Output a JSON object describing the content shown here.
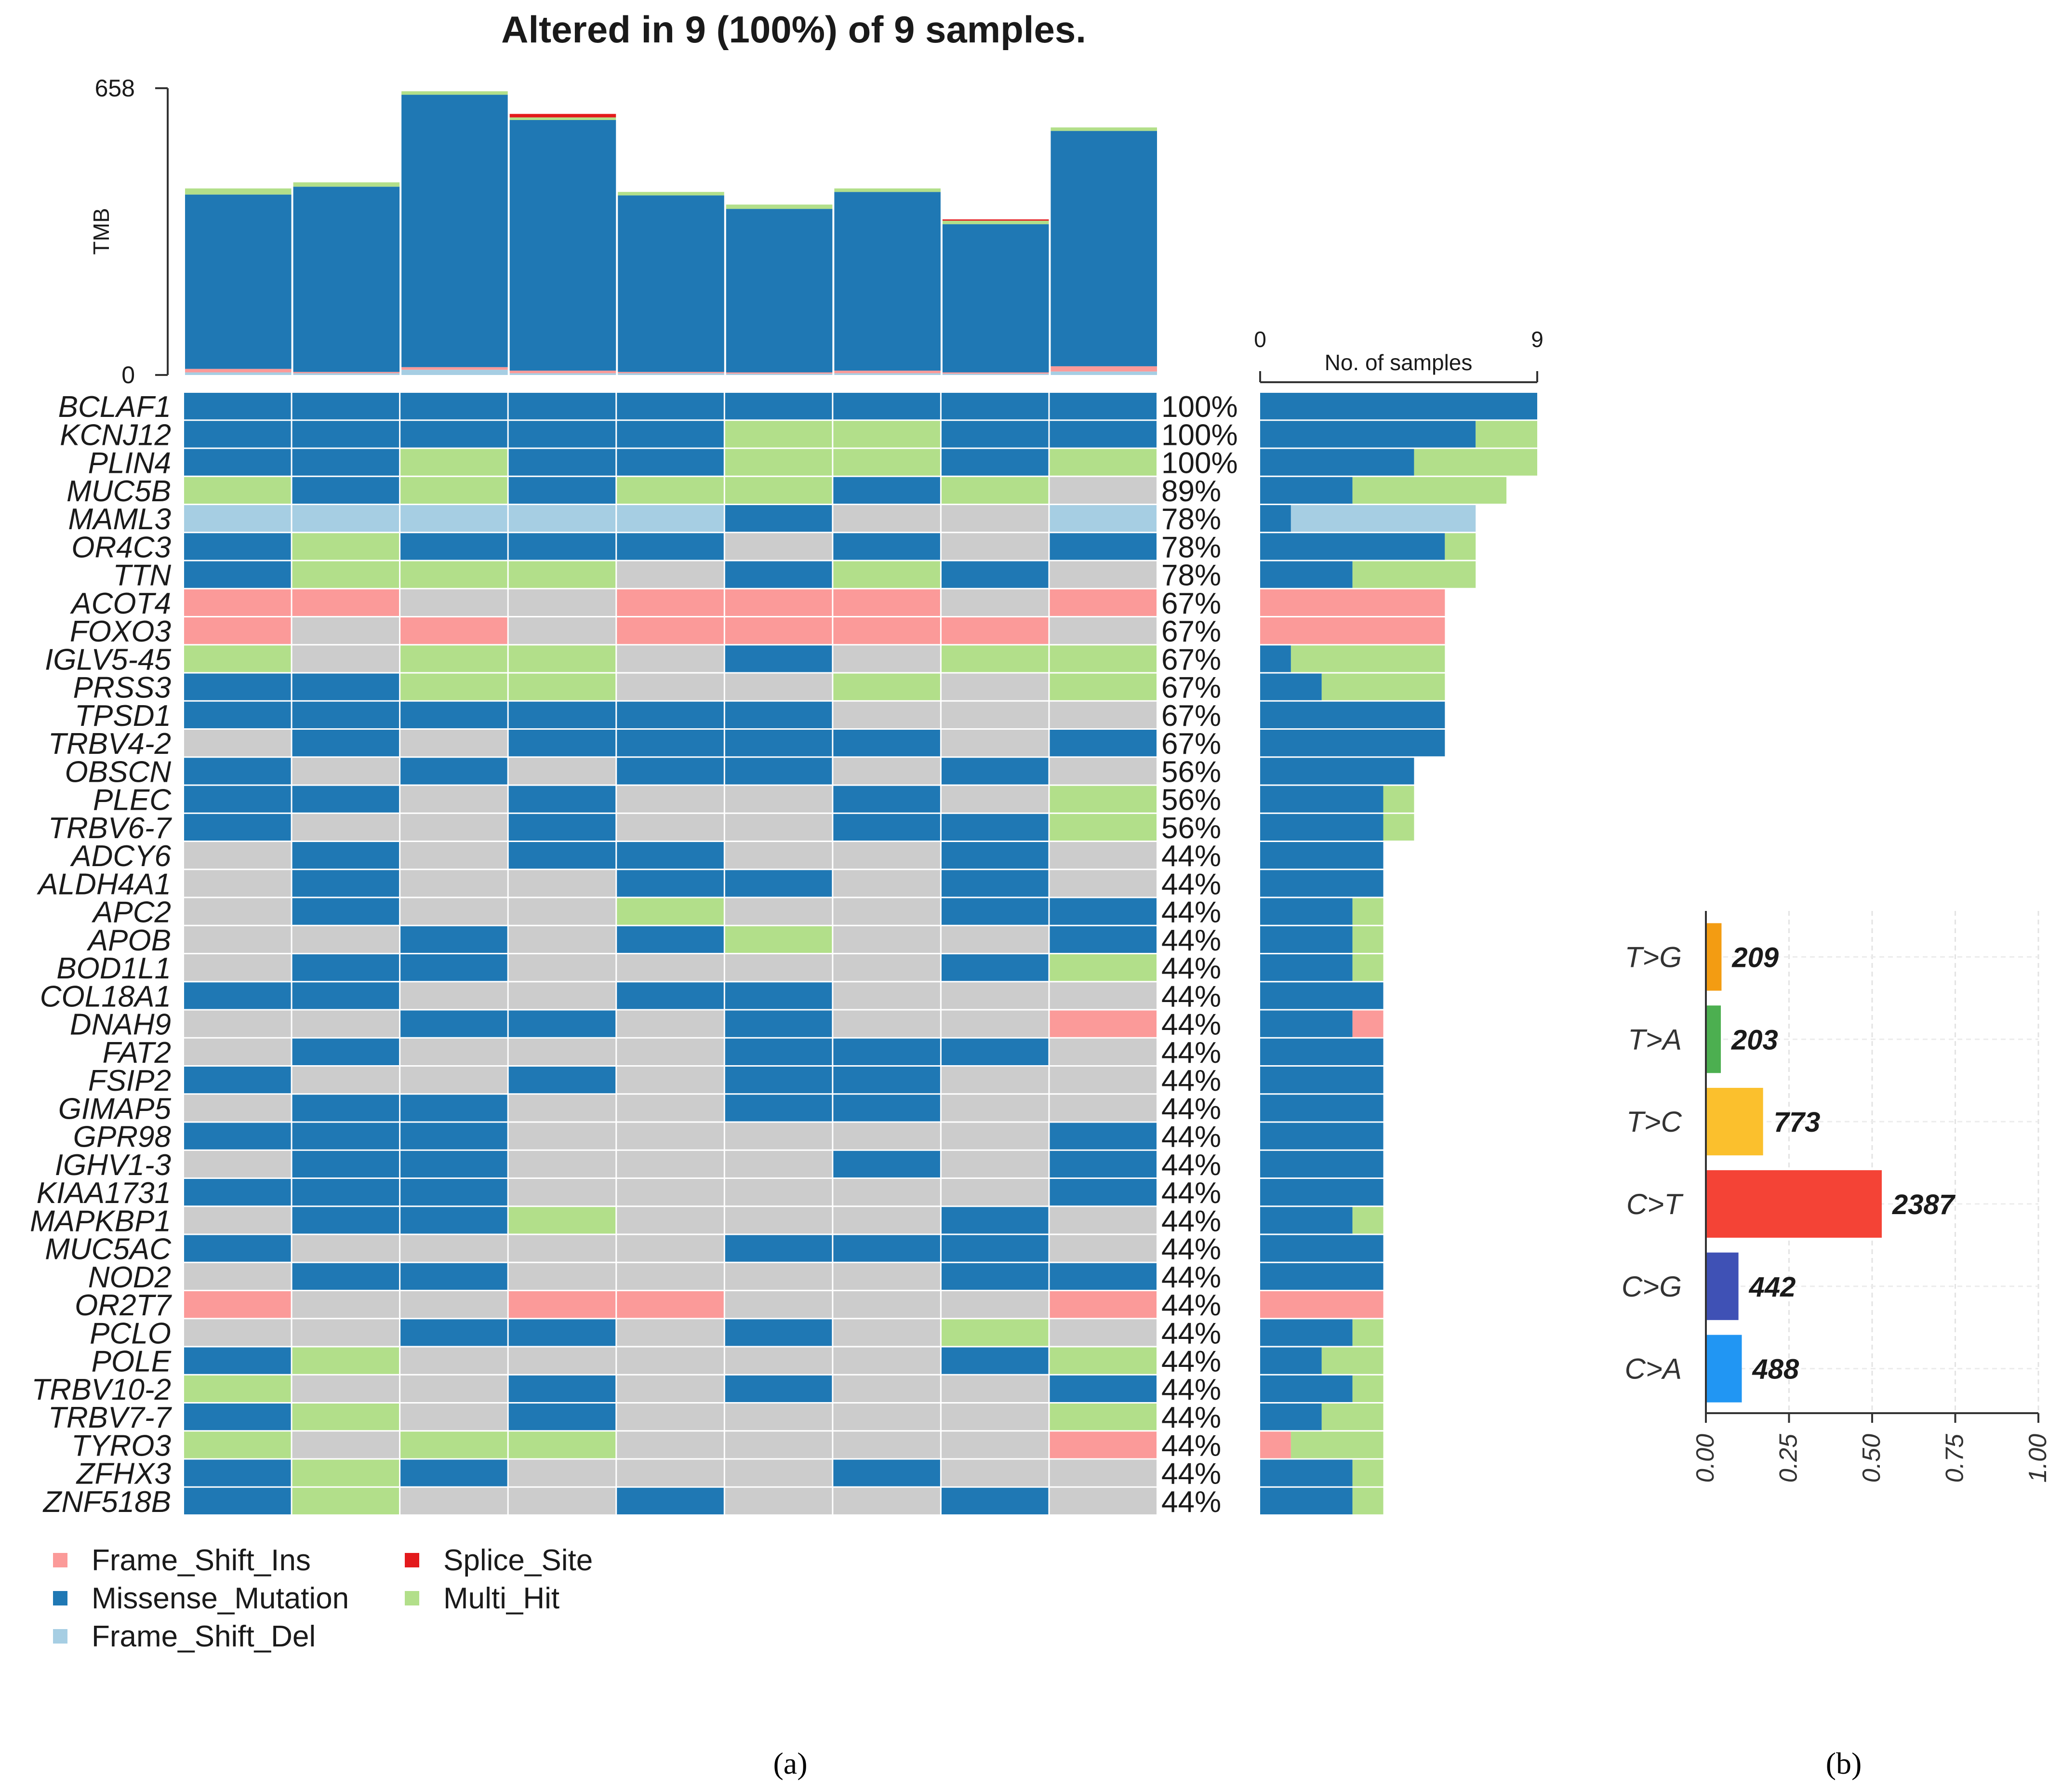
{
  "chart_data": [
    {
      "type": "oncoplot",
      "title": "Altered in 9 (100%) of 9 samples.",
      "tmb": {
        "ylabel": "TMB",
        "ylim": [
          0,
          658
        ],
        "tick_labels": [
          "658",
          "0"
        ],
        "samples": [
          {
            "missense": 400,
            "multi": 14,
            "fs_ins": 8,
            "fs_del": 6,
            "splice": 0
          },
          {
            "missense": 425,
            "multi": 10,
            "fs_ins": 3,
            "fs_del": 4,
            "splice": 0
          },
          {
            "missense": 625,
            "multi": 8,
            "fs_ins": 6,
            "fs_del": 12,
            "splice": 0
          },
          {
            "missense": 575,
            "multi": 6,
            "fs_ins": 6,
            "fs_del": 4,
            "splice": 8
          },
          {
            "missense": 405,
            "multi": 8,
            "fs_ins": 3,
            "fs_del": 4,
            "splice": 0
          },
          {
            "missense": 375,
            "multi": 10,
            "fs_ins": 3,
            "fs_del": 3,
            "splice": 0
          },
          {
            "missense": 410,
            "multi": 8,
            "fs_ins": 6,
            "fs_del": 4,
            "splice": 0
          },
          {
            "missense": 340,
            "multi": 8,
            "fs_ins": 3,
            "fs_del": 3,
            "splice": 3
          },
          {
            "missense": 540,
            "multi": 8,
            "fs_ins": 12,
            "fs_del": 8,
            "splice": 0
          }
        ]
      },
      "side_axis": {
        "label": "No. of samples",
        "min": 0,
        "max": 9,
        "min_label": "0",
        "max_label": "9"
      },
      "genes": [
        {
          "name": "BCLAF1",
          "pct": "100%",
          "cells": [
            "M",
            "M",
            "M",
            "M",
            "M",
            "M",
            "M",
            "M",
            "M"
          ]
        },
        {
          "name": "KCNJ12",
          "pct": "100%",
          "cells": [
            "M",
            "M",
            "M",
            "M",
            "M",
            "H",
            "H",
            "M",
            "M"
          ]
        },
        {
          "name": "PLIN4",
          "pct": "100%",
          "cells": [
            "M",
            "M",
            "H",
            "M",
            "M",
            "H",
            "H",
            "M",
            "H"
          ]
        },
        {
          "name": "MUC5B",
          "pct": "89%",
          "cells": [
            "H",
            "M",
            "H",
            "M",
            "H",
            "H",
            "M",
            "H",
            "-"
          ]
        },
        {
          "name": "MAML3",
          "pct": "78%",
          "cells": [
            "D",
            "D",
            "D",
            "D",
            "D",
            "M",
            "-",
            "-",
            "D"
          ]
        },
        {
          "name": "OR4C3",
          "pct": "78%",
          "cells": [
            "M",
            "H",
            "M",
            "M",
            "M",
            "-",
            "M",
            "-",
            "M"
          ]
        },
        {
          "name": "TTN",
          "pct": "78%",
          "cells": [
            "M",
            "H",
            "H",
            "H",
            "-",
            "M",
            "H",
            "M",
            "-"
          ]
        },
        {
          "name": "ACOT4",
          "pct": "67%",
          "cells": [
            "I",
            "I",
            "-",
            "-",
            "I",
            "I",
            "I",
            "-",
            "I"
          ]
        },
        {
          "name": "FOXO3",
          "pct": "67%",
          "cells": [
            "I",
            "-",
            "I",
            "-",
            "I",
            "I",
            "I",
            "I",
            "-"
          ]
        },
        {
          "name": "IGLV5-45",
          "pct": "67%",
          "cells": [
            "H",
            "-",
            "H",
            "H",
            "-",
            "M",
            "-",
            "H",
            "H"
          ]
        },
        {
          "name": "PRSS3",
          "pct": "67%",
          "cells": [
            "M",
            "M",
            "H",
            "H",
            "-",
            "-",
            "H",
            "-",
            "H"
          ]
        },
        {
          "name": "TPSD1",
          "pct": "67%",
          "cells": [
            "M",
            "M",
            "M",
            "M",
            "M",
            "M",
            "-",
            "-",
            "-"
          ]
        },
        {
          "name": "TRBV4-2",
          "pct": "67%",
          "cells": [
            "-",
            "M",
            "-",
            "M",
            "M",
            "M",
            "M",
            "-",
            "M"
          ]
        },
        {
          "name": "OBSCN",
          "pct": "56%",
          "cells": [
            "M",
            "-",
            "M",
            "-",
            "M",
            "M",
            "-",
            "M",
            "-"
          ]
        },
        {
          "name": "PLEC",
          "pct": "56%",
          "cells": [
            "M",
            "M",
            "-",
            "M",
            "-",
            "-",
            "M",
            "-",
            "H"
          ]
        },
        {
          "name": "TRBV6-7",
          "pct": "56%",
          "cells": [
            "M",
            "-",
            "-",
            "M",
            "-",
            "-",
            "M",
            "M",
            "H"
          ]
        },
        {
          "name": "ADCY6",
          "pct": "44%",
          "cells": [
            "-",
            "M",
            "-",
            "M",
            "M",
            "-",
            "-",
            "M",
            "-"
          ]
        },
        {
          "name": "ALDH4A1",
          "pct": "44%",
          "cells": [
            "-",
            "M",
            "-",
            "-",
            "M",
            "M",
            "-",
            "M",
            "-"
          ]
        },
        {
          "name": "APC2",
          "pct": "44%",
          "cells": [
            "-",
            "M",
            "-",
            "-",
            "H",
            "-",
            "-",
            "M",
            "M"
          ]
        },
        {
          "name": "APOB",
          "pct": "44%",
          "cells": [
            "-",
            "-",
            "M",
            "-",
            "M",
            "H",
            "-",
            "-",
            "M"
          ]
        },
        {
          "name": "BOD1L1",
          "pct": "44%",
          "cells": [
            "-",
            "M",
            "M",
            "-",
            "-",
            "-",
            "-",
            "M",
            "H"
          ]
        },
        {
          "name": "COL18A1",
          "pct": "44%",
          "cells": [
            "M",
            "M",
            "-",
            "-",
            "M",
            "M",
            "-",
            "-",
            "-"
          ]
        },
        {
          "name": "DNAH9",
          "pct": "44%",
          "cells": [
            "-",
            "-",
            "M",
            "M",
            "-",
            "M",
            "-",
            "-",
            "I"
          ]
        },
        {
          "name": "FAT2",
          "pct": "44%",
          "cells": [
            "-",
            "M",
            "-",
            "-",
            "-",
            "M",
            "M",
            "M",
            "-"
          ]
        },
        {
          "name": "FSIP2",
          "pct": "44%",
          "cells": [
            "M",
            "-",
            "-",
            "M",
            "-",
            "M",
            "M",
            "-",
            "-"
          ]
        },
        {
          "name": "GIMAP5",
          "pct": "44%",
          "cells": [
            "-",
            "M",
            "M",
            "-",
            "-",
            "M",
            "M",
            "-",
            "-"
          ]
        },
        {
          "name": "GPR98",
          "pct": "44%",
          "cells": [
            "M",
            "M",
            "M",
            "-",
            "-",
            "-",
            "-",
            "-",
            "M"
          ]
        },
        {
          "name": "IGHV1-3",
          "pct": "44%",
          "cells": [
            "-",
            "M",
            "M",
            "-",
            "-",
            "-",
            "M",
            "-",
            "M"
          ]
        },
        {
          "name": "KIAA1731",
          "pct": "44%",
          "cells": [
            "M",
            "M",
            "M",
            "-",
            "-",
            "-",
            "-",
            "-",
            "M"
          ]
        },
        {
          "name": "MAPKBP1",
          "pct": "44%",
          "cells": [
            "-",
            "M",
            "M",
            "H",
            "-",
            "-",
            "-",
            "M",
            "-"
          ]
        },
        {
          "name": "MUC5AC",
          "pct": "44%",
          "cells": [
            "M",
            "-",
            "-",
            "-",
            "-",
            "M",
            "M",
            "M",
            "-"
          ]
        },
        {
          "name": "NOD2",
          "pct": "44%",
          "cells": [
            "-",
            "M",
            "M",
            "-",
            "-",
            "-",
            "-",
            "M",
            "M"
          ]
        },
        {
          "name": "OR2T7",
          "pct": "44%",
          "cells": [
            "I",
            "-",
            "-",
            "I",
            "I",
            "-",
            "-",
            "-",
            "I"
          ]
        },
        {
          "name": "PCLO",
          "pct": "44%",
          "cells": [
            "-",
            "-",
            "M",
            "M",
            "-",
            "M",
            "-",
            "H",
            "-"
          ]
        },
        {
          "name": "POLE",
          "pct": "44%",
          "cells": [
            "M",
            "H",
            "-",
            "-",
            "-",
            "-",
            "-",
            "M",
            "H"
          ]
        },
        {
          "name": "TRBV10-2",
          "pct": "44%",
          "cells": [
            "H",
            "-",
            "-",
            "M",
            "-",
            "M",
            "-",
            "-",
            "M"
          ]
        },
        {
          "name": "TRBV7-7",
          "pct": "44%",
          "cells": [
            "M",
            "H",
            "-",
            "M",
            "-",
            "-",
            "-",
            "-",
            "H"
          ]
        },
        {
          "name": "TYRO3",
          "pct": "44%",
          "cells": [
            "H",
            "-",
            "H",
            "H",
            "-",
            "-",
            "-",
            "-",
            "I"
          ]
        },
        {
          "name": "ZFHX3",
          "pct": "44%",
          "cells": [
            "M",
            "H",
            "M",
            "-",
            "-",
            "-",
            "M",
            "-",
            "-"
          ]
        },
        {
          "name": "ZNF518B",
          "pct": "44%",
          "cells": [
            "M",
            "H",
            "-",
            "-",
            "M",
            "-",
            "-",
            "M",
            "-"
          ]
        }
      ],
      "legend": [
        {
          "code": "I",
          "label": "Frame_Shift_Ins",
          "color": "#fb9a99"
        },
        {
          "code": "S",
          "label": "Splice_Site",
          "color": "#e31a1c"
        },
        {
          "code": "M",
          "label": "Missense_Mutation",
          "color": "#1f78b4"
        },
        {
          "code": "H",
          "label": "Multi_Hit",
          "color": "#b2df8a"
        },
        {
          "code": "D",
          "label": "Frame_Shift_Del",
          "color": "#a6cee3"
        }
      ],
      "empty_color": "#cccccc"
    },
    {
      "type": "bar",
      "orientation": "horizontal",
      "categories": [
        "T>G",
        "T>A",
        "T>C",
        "C>T",
        "C>G",
        "C>A"
      ],
      "values": [
        0.047,
        0.045,
        0.172,
        0.529,
        0.098,
        0.108
      ],
      "counts": [
        "209",
        "203",
        "773",
        "2387",
        "442",
        "488"
      ],
      "colors": [
        "#f39c12",
        "#4caf50",
        "#fbc02d",
        "#f44336",
        "#3f51b5",
        "#2196f3"
      ],
      "xlim": [
        0,
        1
      ],
      "xticks": [
        "0.00",
        "0.25",
        "0.50",
        "0.75",
        "1.00"
      ]
    }
  ],
  "panel_labels": {
    "a": "(a)",
    "b": "(b)"
  }
}
